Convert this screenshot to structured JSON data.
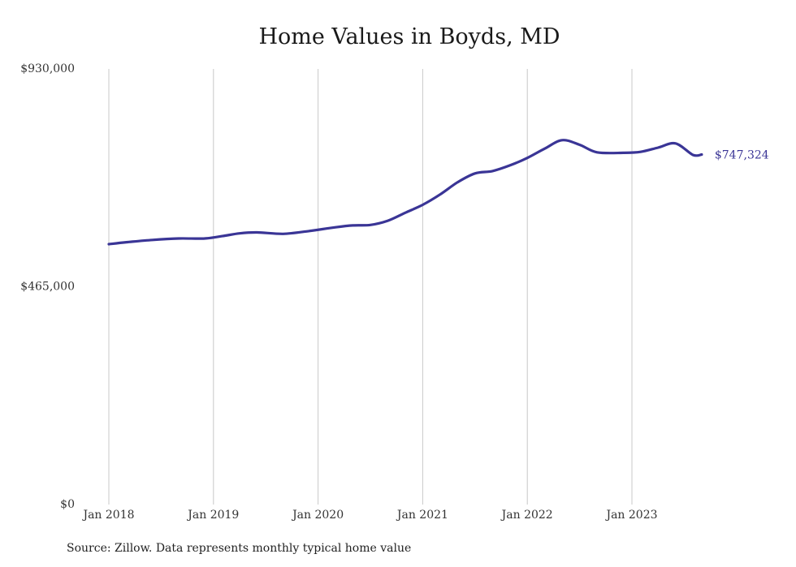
{
  "title": "Home Values in Boyds, MD",
  "source": "Source: Zillow. Data represents monthly typical home value",
  "colors": {
    "line": "#3a3596",
    "grid": "#c8c8c8",
    "axis": "#999999"
  },
  "chart_data": {
    "type": "line",
    "title": "Home Values in Boyds, MD",
    "xlabel": "",
    "ylabel": "",
    "x_ticks": [
      "Jan 2018",
      "Jan 2019",
      "Jan 2020",
      "Jan 2021",
      "Jan 2022",
      "Jan 2023"
    ],
    "y_ticks": [
      "$0",
      "$465,000",
      "$930,000"
    ],
    "ylim": [
      0,
      930000
    ],
    "grid": "vertical",
    "end_label": "$747,324",
    "series": [
      {
        "points": [
          [
            "2018-01",
            556000
          ],
          [
            "2018-03",
            560000
          ],
          [
            "2018-06",
            565000
          ],
          [
            "2018-09",
            568000
          ],
          [
            "2018-12",
            568000
          ],
          [
            "2019-02",
            573000
          ],
          [
            "2019-04",
            579000
          ],
          [
            "2019-06",
            581000
          ],
          [
            "2019-09",
            578000
          ],
          [
            "2019-12",
            584000
          ],
          [
            "2020-03",
            592000
          ],
          [
            "2020-05",
            596000
          ],
          [
            "2020-07",
            597000
          ],
          [
            "2020-09",
            606000
          ],
          [
            "2020-11",
            623000
          ],
          [
            "2021-01",
            640000
          ],
          [
            "2021-03",
            662000
          ],
          [
            "2021-05",
            688000
          ],
          [
            "2021-07",
            707000
          ],
          [
            "2021-09",
            712000
          ],
          [
            "2021-11",
            724000
          ],
          [
            "2022-01",
            740000
          ],
          [
            "2022-03",
            760000
          ],
          [
            "2022-05",
            778000
          ],
          [
            "2022-07",
            768000
          ],
          [
            "2022-09",
            752000
          ],
          [
            "2022-12",
            751000
          ],
          [
            "2023-02",
            753000
          ],
          [
            "2023-04",
            762000
          ],
          [
            "2023-06",
            771000
          ],
          [
            "2023-08",
            746500
          ],
          [
            "2023-09",
            747324
          ]
        ]
      }
    ]
  }
}
